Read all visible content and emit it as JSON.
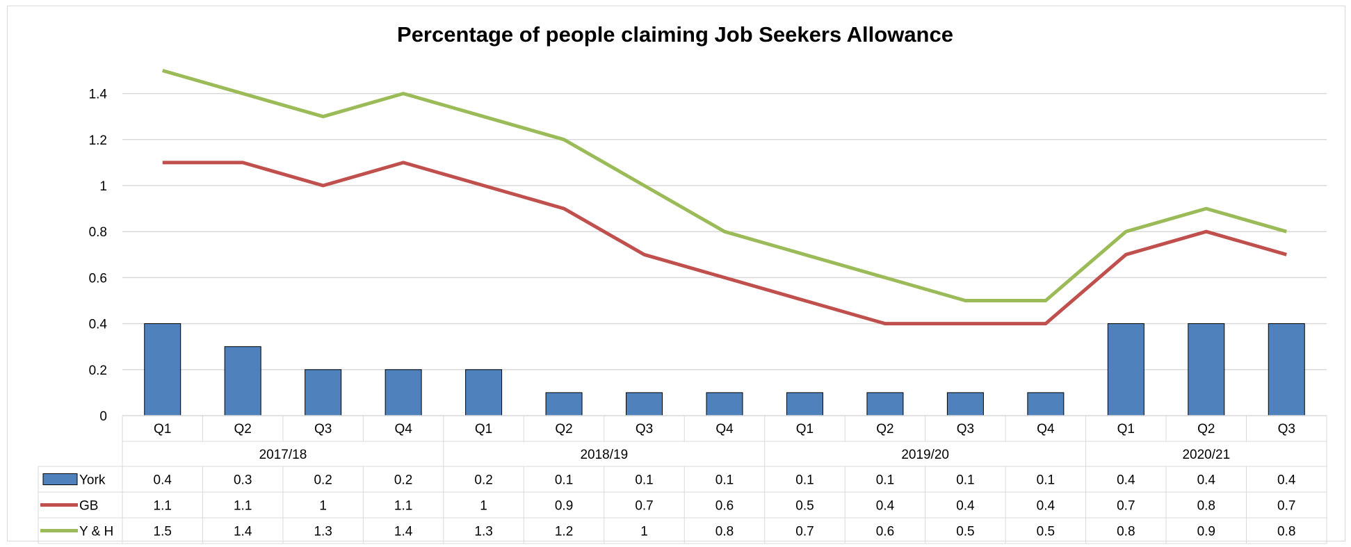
{
  "chart_data": {
    "type": "bar",
    "title": "Percentage of people claiming Job Seekers Allowance",
    "xlabel": "",
    "ylabel": "",
    "ylim": [
      0,
      1.5
    ],
    "yticks": [
      "0",
      "0.2",
      "0.4",
      "0.6",
      "0.8",
      "1",
      "1.2",
      "1.4"
    ],
    "grid": true,
    "legend": "data-table",
    "categories": [
      "Q1",
      "Q2",
      "Q3",
      "Q4",
      "Q1",
      "Q2",
      "Q3",
      "Q4",
      "Q1",
      "Q2",
      "Q3",
      "Q4",
      "Q1",
      "Q2",
      "Q3"
    ],
    "groups": [
      {
        "label": "2017/18",
        "count": 4
      },
      {
        "label": "2018/19",
        "count": 4
      },
      {
        "label": "2019/20",
        "count": 4
      },
      {
        "label": "2020/21",
        "count": 3
      }
    ],
    "series": [
      {
        "name": "York",
        "kind": "bar",
        "color": "#4f81bd",
        "values": [
          0.4,
          0.3,
          0.2,
          0.2,
          0.2,
          0.1,
          0.1,
          0.1,
          0.1,
          0.1,
          0.1,
          0.1,
          0.4,
          0.4,
          0.4
        ]
      },
      {
        "name": "GB",
        "kind": "line",
        "color": "#c0504d",
        "values": [
          1.1,
          1.1,
          1,
          1.1,
          1,
          0.9,
          0.7,
          0.6,
          0.5,
          0.4,
          0.4,
          0.4,
          0.7,
          0.8,
          0.7
        ]
      },
      {
        "name": "Y & H",
        "kind": "line",
        "color": "#9bbb59",
        "values": [
          1.5,
          1.4,
          1.3,
          1.4,
          1.3,
          1.2,
          1,
          0.8,
          0.7,
          0.6,
          0.5,
          0.5,
          0.8,
          0.9,
          0.8
        ]
      }
    ]
  }
}
